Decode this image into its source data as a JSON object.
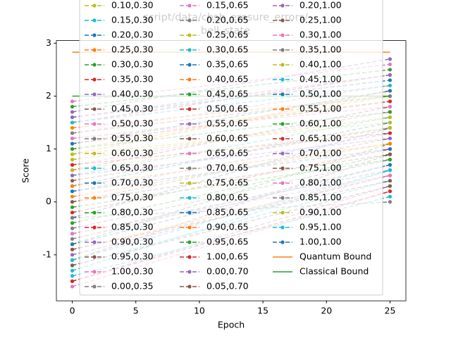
{
  "chart_data": {
    "type": "line",
    "title_lines": [
      "script/data/chsh_erasure_errors/",
      "bell_state"
    ],
    "xlabel": "Epoch",
    "ylabel": "Score",
    "x": [
      0,
      25
    ],
    "xlim": [
      -1.25,
      26.25
    ],
    "xticks": [
      0,
      5,
      10,
      15,
      20,
      25
    ],
    "ylim": [
      -1.87,
      3.05
    ],
    "yticks": [
      -1,
      0,
      1,
      2,
      3
    ],
    "grid": false,
    "linestyle": "dashed",
    "marker": "o",
    "legend": "upper center",
    "legend_columns": 3,
    "series": [
      {
        "name": "0.10,0.30",
        "color": "#bcbd22",
        "values": [
          1.2,
          1.9
        ]
      },
      {
        "name": "0.15,0.30",
        "color": "#17becf",
        "values": [
          0.5,
          1.6
        ]
      },
      {
        "name": "0.20,0.30",
        "color": "#1f77b4",
        "values": [
          -0.3,
          1.4
        ]
      },
      {
        "name": "0.25,0.30",
        "color": "#ff7f0e",
        "values": [
          0.9,
          2.1
        ]
      },
      {
        "name": "0.30,0.30",
        "color": "#2ca02c",
        "values": [
          -0.8,
          1.1
        ]
      },
      {
        "name": "0.35,0.30",
        "color": "#d62728",
        "values": [
          1.5,
          2.4
        ]
      },
      {
        "name": "0.40,0.30",
        "color": "#9467bd",
        "values": [
          0.2,
          1.3
        ]
      },
      {
        "name": "0.45,0.30",
        "color": "#8c564b",
        "values": [
          -1.1,
          0.9
        ]
      },
      {
        "name": "0.50,0.30",
        "color": "#e377c2",
        "values": [
          0.7,
          1.7
        ]
      },
      {
        "name": "0.55,0.30",
        "color": "#7f7f7f",
        "values": [
          -0.5,
          0.8
        ]
      },
      {
        "name": "0.60,0.30",
        "color": "#bcbd22",
        "values": [
          1.0,
          2.0
        ]
      },
      {
        "name": "0.65,0.30",
        "color": "#17becf",
        "values": [
          -1.3,
          0.6
        ]
      },
      {
        "name": "0.70,0.30",
        "color": "#1f77b4",
        "values": [
          0.3,
          1.5
        ]
      },
      {
        "name": "0.75,0.30",
        "color": "#ff7f0e",
        "values": [
          -0.9,
          0.5
        ]
      },
      {
        "name": "0.80,0.30",
        "color": "#2ca02c",
        "values": [
          1.8,
          2.5
        ]
      },
      {
        "name": "0.85,0.30",
        "color": "#d62728",
        "values": [
          -0.2,
          1.0
        ]
      },
      {
        "name": "0.90,0.30",
        "color": "#9467bd",
        "values": [
          -1.5,
          0.3
        ]
      },
      {
        "name": "0.95,0.30",
        "color": "#8c564b",
        "values": [
          0.6,
          1.8
        ]
      },
      {
        "name": "1.00,0.30",
        "color": "#e377c2",
        "values": [
          -1.6,
          0.2
        ]
      },
      {
        "name": "0.00,0.35",
        "color": "#7f7f7f",
        "values": [
          0.0,
          1.2
        ]
      },
      {
        "name": "0.15,0.65",
        "color": "#e377c2",
        "values": [
          1.3,
          2.2
        ]
      },
      {
        "name": "0.20,0.65",
        "color": "#7f7f7f",
        "values": [
          -0.7,
          0.7
        ]
      },
      {
        "name": "0.25,0.65",
        "color": "#bcbd22",
        "values": [
          0.8,
          1.6
        ]
      },
      {
        "name": "0.30,0.65",
        "color": "#17becf",
        "values": [
          -1.2,
          0.4
        ]
      },
      {
        "name": "0.35,0.65",
        "color": "#1f77b4",
        "values": [
          1.6,
          2.3
        ]
      },
      {
        "name": "0.40,0.65",
        "color": "#ff7f0e",
        "values": [
          0.1,
          1.1
        ]
      },
      {
        "name": "0.45,0.65",
        "color": "#2ca02c",
        "values": [
          -0.4,
          0.9
        ]
      },
      {
        "name": "0.50,0.65",
        "color": "#d62728",
        "values": [
          1.1,
          1.9
        ]
      },
      {
        "name": "0.55,0.65",
        "color": "#9467bd",
        "values": [
          -1.0,
          0.5
        ]
      },
      {
        "name": "0.60,0.65",
        "color": "#8c564b",
        "values": [
          0.4,
          1.4
        ]
      },
      {
        "name": "0.65,0.65",
        "color": "#e377c2",
        "values": [
          1.9,
          2.6
        ]
      },
      {
        "name": "0.70,0.65",
        "color": "#7f7f7f",
        "values": [
          -0.6,
          0.6
        ]
      },
      {
        "name": "0.75,0.65",
        "color": "#bcbd22",
        "values": [
          0.9,
          1.5
        ]
      },
      {
        "name": "0.80,0.65",
        "color": "#17becf",
        "values": [
          -1.4,
          0.1
        ]
      },
      {
        "name": "0.85,0.65",
        "color": "#1f77b4",
        "values": [
          0.2,
          1.0
        ]
      },
      {
        "name": "0.90,0.65",
        "color": "#ff7f0e",
        "values": [
          1.4,
          2.0
        ]
      },
      {
        "name": "0.95,0.65",
        "color": "#2ca02c",
        "values": [
          -0.1,
          0.8
        ]
      },
      {
        "name": "1.00,0.65",
        "color": "#d62728",
        "values": [
          0.7,
          1.3
        ]
      },
      {
        "name": "0.00,0.70",
        "color": "#9467bd",
        "values": [
          1.7,
          2.7
        ]
      },
      {
        "name": "0.05,0.70",
        "color": "#8c564b",
        "values": [
          -0.9,
          0.4
        ]
      },
      {
        "name": "0.20,1.00",
        "color": "#9467bd",
        "values": [
          0.5,
          1.2
        ]
      },
      {
        "name": "0.25,1.00",
        "color": "#8c564b",
        "values": [
          -1.2,
          0.3
        ]
      },
      {
        "name": "0.30,1.00",
        "color": "#e377c2",
        "values": [
          1.2,
          1.8
        ]
      },
      {
        "name": "0.35,1.00",
        "color": "#7f7f7f",
        "values": [
          -0.3,
          0.0
        ]
      },
      {
        "name": "0.40,1.00",
        "color": "#bcbd22",
        "values": [
          0.8,
          1.6
        ]
      },
      {
        "name": "0.45,1.00",
        "color": "#17becf",
        "values": [
          1.5,
          2.2
        ]
      },
      {
        "name": "0.50,1.00",
        "color": "#1f77b4",
        "values": [
          -0.8,
          0.7
        ]
      },
      {
        "name": "0.55,1.00",
        "color": "#ff7f0e",
        "values": [
          0.3,
          1.1
        ]
      },
      {
        "name": "0.60,1.00",
        "color": "#2ca02c",
        "values": [
          1.0,
          1.7
        ]
      },
      {
        "name": "0.65,1.00",
        "color": "#d62728",
        "values": [
          -1.5,
          0.2
        ]
      },
      {
        "name": "0.70,1.00",
        "color": "#9467bd",
        "values": [
          1.6,
          2.4
        ]
      },
      {
        "name": "0.75,1.00",
        "color": "#8c564b",
        "values": [
          0.0,
          0.9
        ]
      },
      {
        "name": "0.80,1.00",
        "color": "#e377c2",
        "values": [
          -0.6,
          0.5
        ]
      },
      {
        "name": "0.85,1.00",
        "color": "#7f7f7f",
        "values": [
          1.3,
          2.0
        ]
      },
      {
        "name": "0.90,1.00",
        "color": "#bcbd22",
        "values": [
          0.6,
          1.4
        ]
      },
      {
        "name": "0.95,1.00",
        "color": "#17becf",
        "values": [
          -1.1,
          0.6
        ]
      },
      {
        "name": "1.00,1.00",
        "color": "#1f77b4",
        "values": [
          1.1,
          2.1
        ]
      },
      {
        "name": "Quantum Bound",
        "color": "#ff7f0e",
        "linestyle": "solid",
        "values": [
          2.83,
          2.83
        ]
      },
      {
        "name": "Classical Bound",
        "color": "#2ca02c",
        "linestyle": "solid",
        "values": [
          2,
          2
        ]
      }
    ]
  }
}
